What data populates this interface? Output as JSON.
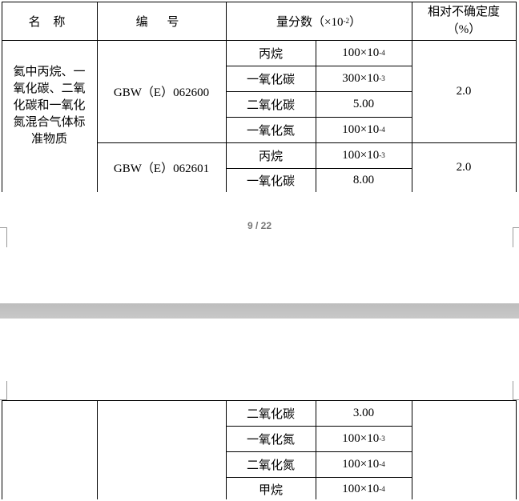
{
  "header": {
    "name": "名 称",
    "code": "编 号",
    "fraction": "量分数（×10",
    "fraction_exp": "-2",
    "fraction_end": "）",
    "uncertainty": "相对不确定度（%）"
  },
  "groups": [
    {
      "name": "氦中丙烷、一氧化碳、二氧化碳和一氧化氮混合气体标准物质",
      "code": "GBW（E）062600",
      "uncertainty": "2.0",
      "rows": [
        {
          "component": "丙烷",
          "base": "100×10",
          "exp": "-4"
        },
        {
          "component": "一氧化碳",
          "base": "300×10",
          "exp": "-3"
        },
        {
          "component": "二氧化碳",
          "base": "5.00",
          "exp": ""
        },
        {
          "component": "一氧化氮",
          "base": "100×10",
          "exp": "-4"
        }
      ]
    },
    {
      "code": "GBW（E）062601",
      "uncertainty": "2.0",
      "rows": [
        {
          "component": "丙烷",
          "base": "100×10",
          "exp": "-3"
        },
        {
          "component": "一氧化碳",
          "base": "8.00",
          "exp": ""
        }
      ]
    }
  ],
  "continued_rows": [
    {
      "component": "二氧化碳",
      "base": "3.00",
      "exp": ""
    },
    {
      "component": "一氧化氮",
      "base": "100×10",
      "exp": "-3"
    },
    {
      "component": "二氧化氮",
      "base": "100×10",
      "exp": "-4"
    },
    {
      "component": "甲烷",
      "base": "100×10",
      "exp": "-4"
    }
  ],
  "page_indicator": "9 / 22"
}
